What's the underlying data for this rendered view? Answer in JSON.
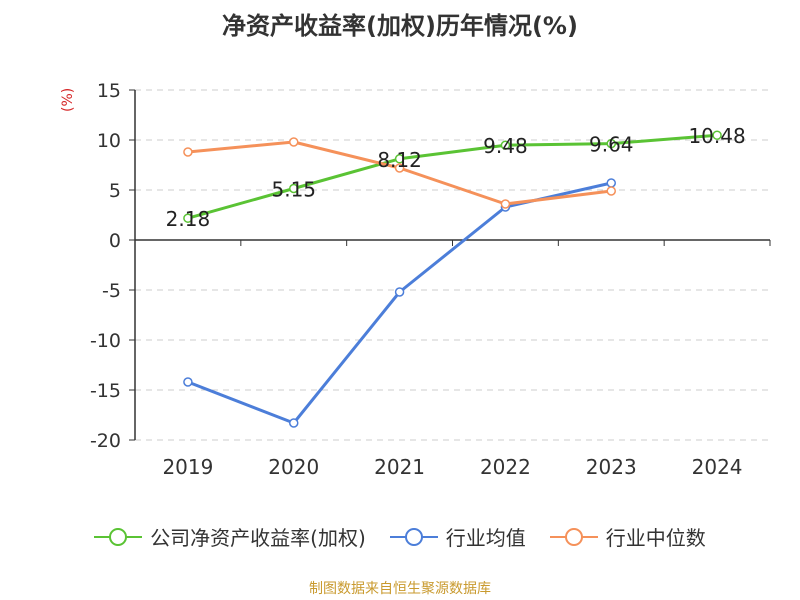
{
  "title": "净资产收益率(加权)历年情况(%)",
  "unit_label": "(%)",
  "source": "制图数据来自恒生聚源数据库",
  "chart_data": {
    "type": "line",
    "title": "净资产收益率(加权)历年情况(%)",
    "ylabel": "(%)",
    "categories": [
      "2019",
      "2020",
      "2021",
      "2022",
      "2023",
      "2024"
    ],
    "ylim": [
      -20,
      15
    ],
    "yticks": [
      15,
      10,
      5,
      0,
      -5,
      -10,
      -15,
      -20
    ],
    "grid": true,
    "legend_position": "bottom",
    "series": [
      {
        "name": "公司净资产收益率(加权)",
        "color": "#5ac334",
        "values": [
          2.18,
          5.15,
          8.12,
          9.48,
          9.64,
          10.48
        ],
        "labels": [
          "2.18",
          "5.15",
          "8.12",
          "9.48",
          "9.64",
          "10.48"
        ]
      },
      {
        "name": "行业均值",
        "color": "#4c7ed9",
        "values": [
          -14.2,
          -18.3,
          -5.2,
          3.3,
          5.7,
          null
        ]
      },
      {
        "name": "行业中位数",
        "color": "#f5915a",
        "values": [
          8.8,
          9.8,
          7.2,
          3.6,
          4.9,
          null
        ]
      }
    ]
  }
}
